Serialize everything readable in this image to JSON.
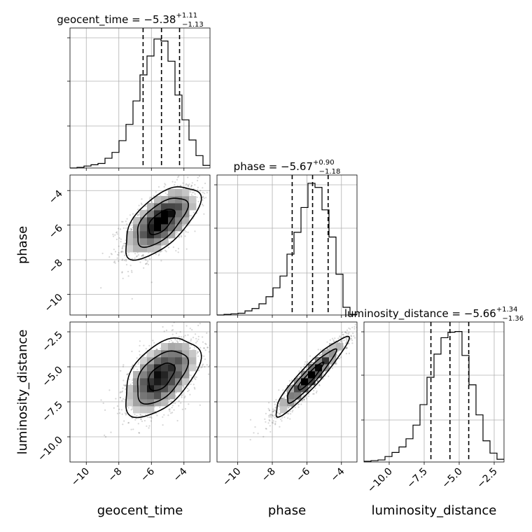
{
  "figure": {
    "parameters": [
      "geocent_time",
      "phase",
      "luminosity_distance"
    ],
    "colors": {
      "foreground": "#000000",
      "grid": "#b0b0b0",
      "points": "#222222"
    }
  },
  "chart_data": {
    "type": "corner",
    "grid": true,
    "parameters": [
      {
        "name": "geocent_time",
        "xlabel": "geocent_time",
        "ylabel": "",
        "title": {
          "main": "geocent_time = −5.38",
          "sup": "+1.11",
          "sub": "−1.13"
        },
        "median": -5.38,
        "plus": 1.11,
        "minus": 1.13,
        "quantiles": [
          -6.51,
          -5.38,
          -4.27
        ],
        "range": [
          -11.0,
          -2.4
        ],
        "ticks": [
          -10,
          -8,
          -6,
          -4
        ],
        "tick_labels": [
          "−10",
          "−8",
          "−6",
          "−4"
        ],
        "hist": {
          "edges": [
            -11.0,
            -10.57,
            -10.14,
            -9.71,
            -9.28,
            -8.85,
            -8.42,
            -7.99,
            -7.56,
            -7.13,
            -6.7,
            -6.27,
            -5.84,
            -5.41,
            -4.98,
            -4.55,
            -4.12,
            -3.69,
            -3.26,
            -2.83,
            -2.4
          ],
          "counts": [
            0,
            1,
            3,
            5,
            7,
            15,
            24,
            42,
            67,
            103,
            143,
            172,
            198,
            195,
            164,
            112,
            74,
            43,
            19,
            4
          ],
          "ylim": [
            0,
            215
          ]
        }
      },
      {
        "name": "phase",
        "xlabel": "phase",
        "ylabel": "phase",
        "title": {
          "main": "phase = −5.67",
          "sup": "+0.90",
          "sub": "−1.18"
        },
        "median": -5.67,
        "plus": 0.9,
        "minus": 1.18,
        "quantiles": [
          -6.85,
          -5.67,
          -4.77
        ],
        "range": [
          -11.2,
          -3.1
        ],
        "ticks": [
          -10,
          -8,
          -6,
          -4
        ],
        "tick_labels": [
          "−10",
          "−8",
          "−6",
          "−4"
        ],
        "hist": {
          "edges": [
            -11.2,
            -10.795,
            -10.39,
            -9.985,
            -9.58,
            -9.175,
            -8.77,
            -8.365,
            -7.96,
            -7.555,
            -7.15,
            -6.745,
            -6.34,
            -5.935,
            -5.53,
            -5.125,
            -4.72,
            -4.315,
            -3.91,
            -3.505,
            -3.1
          ],
          "counts": [
            0,
            1,
            2,
            3,
            7,
            11,
            19,
            31,
            46,
            66,
            103,
            140,
            182,
            223,
            216,
            178,
            132,
            69,
            13,
            1
          ],
          "ylim": [
            0,
            237
          ]
        }
      },
      {
        "name": "luminosity_distance",
        "xlabel": "luminosity_distance",
        "ylabel": "luminosity_distance",
        "title": {
          "main": "luminosity_distance = −5.66",
          "sup": "+1.34",
          "sub": "−1.36"
        },
        "median": -5.66,
        "plus": 1.34,
        "minus": 1.36,
        "quantiles": [
          -7.02,
          -5.66,
          -4.32
        ],
        "range": [
          -11.8,
          -1.8
        ],
        "ticks": [
          -10.0,
          -7.5,
          -5.0,
          -2.5
        ],
        "tick_labels": [
          "−10.0",
          "−7.5",
          "−5.0",
          "−2.5"
        ],
        "hist": {
          "edges": [
            -11.8,
            -11.3,
            -10.8,
            -10.3,
            -9.8,
            -9.3,
            -8.8,
            -8.3,
            -7.8,
            -7.3,
            -6.8,
            -6.3,
            -5.8,
            -5.3,
            -4.8,
            -4.3,
            -3.8,
            -3.3,
            -2.8,
            -2.3,
            -1.8
          ],
          "counts": [
            1,
            2,
            3,
            8,
            14,
            22,
            34,
            54,
            84,
            124,
            158,
            182,
            190,
            191,
            156,
            113,
            69,
            31,
            13,
            4
          ],
          "ylim": [
            0,
            205
          ]
        }
      }
    ],
    "pairs": [
      {
        "x": "geocent_time",
        "y": "phase",
        "mean": [
          -5.4,
          -5.8
        ],
        "sd": [
          1.15,
          1.05
        ],
        "corr": 0.62
      },
      {
        "x": "geocent_time",
        "y": "luminosity_distance",
        "mean": [
          -5.4,
          -5.7
        ],
        "sd": [
          1.15,
          1.4
        ],
        "corr": 0.5
      },
      {
        "x": "phase",
        "y": "luminosity_distance",
        "mean": [
          -5.8,
          -5.7
        ],
        "sd": [
          1.05,
          1.4
        ],
        "corr": 0.93
      }
    ]
  }
}
